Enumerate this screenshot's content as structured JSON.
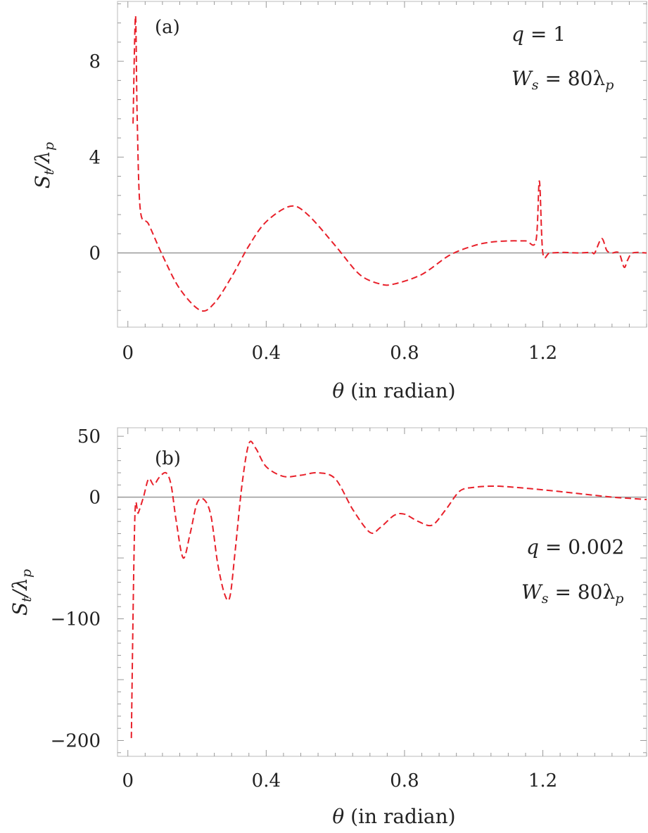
{
  "chart_data": [
    {
      "type": "line",
      "panel_label": "(a)",
      "xlabel": "θ (in radian)",
      "ylabel": "S_t/λ_p",
      "xlim": [
        -0.03,
        1.5
      ],
      "ylim": [
        -3.1,
        10.5
      ],
      "x_ticks": [
        0,
        0.4,
        0.8,
        1.2
      ],
      "x_tick_labels": [
        "0",
        "0.4",
        "0.8",
        "1.2"
      ],
      "y_ticks": [
        0,
        4,
        8
      ],
      "y_tick_labels": [
        "0",
        "4",
        "8"
      ],
      "zero_line": true,
      "annotations": [
        {
          "text": "q = 1",
          "position": "top-right"
        },
        {
          "text": "W_s = 80λ_p",
          "position": "top-right"
        }
      ],
      "series": [
        {
          "color": "#e8202a",
          "style": "dashed",
          "x": [
            0.015,
            0.022,
            0.027,
            0.036,
            0.06,
            0.1,
            0.15,
            0.21,
            0.25,
            0.3,
            0.35,
            0.4,
            0.47,
            0.52,
            0.6,
            0.67,
            0.73,
            0.77,
            0.85,
            0.93,
            1.0,
            1.05,
            1.1,
            1.15,
            1.18,
            1.19,
            1.2,
            1.22,
            1.26,
            1.3,
            1.34,
            1.35,
            1.37,
            1.385,
            1.4,
            1.42,
            1.435,
            1.445,
            1.46,
            1.5
          ],
          "y": [
            5.4,
            9.9,
            5.6,
            1.8,
            1.2,
            -0.1,
            -1.5,
            -2.4,
            -2.1,
            -1.0,
            0.3,
            1.3,
            1.95,
            1.6,
            0.3,
            -0.9,
            -1.3,
            -1.3,
            -0.9,
            -0.1,
            0.3,
            0.45,
            0.5,
            0.5,
            0.5,
            3.0,
            0.0,
            0.0,
            0.02,
            0.0,
            0.02,
            0.0,
            0.6,
            0.1,
            0.0,
            0.0,
            -0.6,
            -0.3,
            0.0,
            0.0
          ]
        }
      ]
    },
    {
      "type": "line",
      "panel_label": "(b)",
      "xlabel": "θ (in radian)",
      "ylabel": "S_t/λ_p",
      "xlim": [
        -0.03,
        1.5
      ],
      "ylim": [
        -213,
        57
      ],
      "x_ticks": [
        0,
        0.4,
        0.8,
        1.2
      ],
      "x_tick_labels": [
        "0",
        "0.4",
        "0.8",
        "1.2"
      ],
      "y_ticks": [
        50,
        0,
        -100,
        -200
      ],
      "y_tick_labels": [
        "50",
        "0",
        "−100",
        "−200"
      ],
      "zero_line": true,
      "annotations": [
        {
          "text": "q = 0.002",
          "position": "right"
        },
        {
          "text": "W_s = 80λ_p",
          "position": "right"
        }
      ],
      "series": [
        {
          "color": "#e8202a",
          "style": "dashed",
          "x": [
            0.01,
            0.02,
            0.03,
            0.045,
            0.06,
            0.075,
            0.09,
            0.11,
            0.125,
            0.14,
            0.16,
            0.18,
            0.2,
            0.22,
            0.24,
            0.26,
            0.28,
            0.295,
            0.31,
            0.33,
            0.35,
            0.37,
            0.4,
            0.45,
            0.5,
            0.55,
            0.6,
            0.65,
            0.7,
            0.73,
            0.77,
            0.8,
            0.84,
            0.88,
            0.92,
            0.96,
            1.0,
            1.05,
            1.1,
            1.2,
            1.3,
            1.4,
            1.45,
            1.5
          ],
          "y": [
            -198,
            -18,
            -13,
            0,
            15,
            10,
            16,
            20,
            10,
            -20,
            -50,
            -30,
            -5,
            -2,
            -15,
            -55,
            -80,
            -82,
            -45,
            10,
            44,
            40,
            25,
            17,
            18,
            20,
            15,
            -10,
            -29,
            -25,
            -15,
            -14,
            -20,
            -23,
            -10,
            5,
            8,
            9,
            8.5,
            6,
            3,
            0,
            -1,
            -2
          ]
        }
      ]
    }
  ]
}
